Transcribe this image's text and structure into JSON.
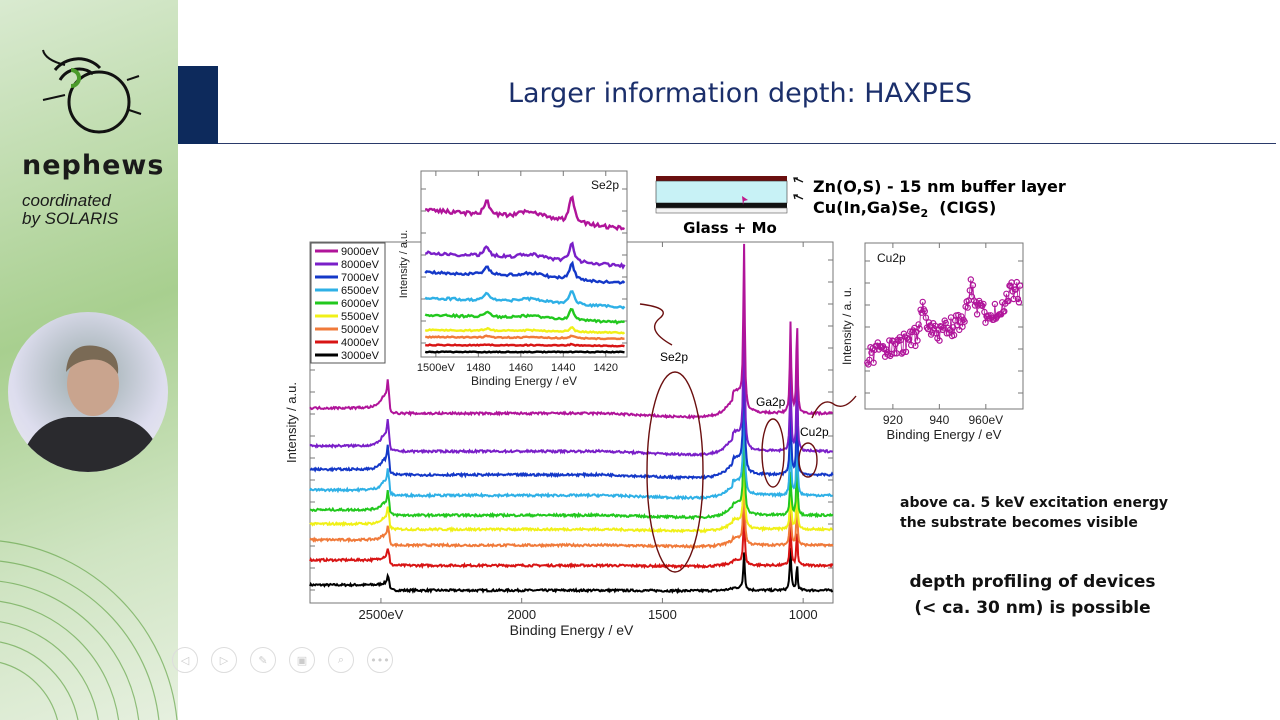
{
  "sidebar": {
    "brand": "nephews",
    "coordinated": "coordinated",
    "by": "by SOLARIS"
  },
  "slide": {
    "title": "Larger information depth: HAXPES",
    "layer_labels": {
      "buffer": "Zn(O,S) - 15 nm buffer layer",
      "cigs_main": "Cu(In,Ga)Se",
      "cigs_sub": "2",
      "cigs_tail": "  (CIGS)",
      "substrate": "Glass + Mo"
    },
    "note_line1": "above ca. 5 keV excitation energy",
    "note_line2": "the substrate becomes visible",
    "conclusion_line1": "depth profiling of devices",
    "conclusion_line2": "(< ca. 30 nm) is possible",
    "annotations": {
      "se2p": "Se2p",
      "ga2p": "Ga2p",
      "cu2p": "Cu2p"
    }
  },
  "controls": [
    {
      "icon": "previous-icon",
      "glyph": "◁"
    },
    {
      "icon": "next-icon",
      "glyph": "▷"
    },
    {
      "icon": "pen-icon",
      "glyph": "✎"
    },
    {
      "icon": "slides-icon",
      "glyph": "▣"
    },
    {
      "icon": "zoom-icon",
      "glyph": "⌕"
    },
    {
      "icon": "more-icon",
      "glyph": "•••"
    }
  ],
  "chart_data": [
    {
      "type": "line",
      "title": "",
      "xlabel": "Binding Energy / eV",
      "ylabel": "Intensity / a.u.",
      "xlim": [
        2752,
        894
      ],
      "ylim": [
        0,
        100
      ],
      "xticks": [
        {
          "v": 2500,
          "label": "2500eV"
        },
        {
          "v": 2000,
          "label": "2000"
        },
        {
          "v": 1500,
          "label": "1500"
        },
        {
          "v": 1000,
          "label": "1000"
        }
      ],
      "legend_position": "top-left",
      "series": [
        {
          "name": "9000eV",
          "color": "#b0149a",
          "baseline": 54
        },
        {
          "name": "8000eV",
          "color": "#7a1fc8",
          "baseline": 43.5
        },
        {
          "name": "7000eV",
          "color": "#1438c8",
          "baseline": 37
        },
        {
          "name": "6500eV",
          "color": "#2eb0e6",
          "baseline": 31.3
        },
        {
          "name": "6000eV",
          "color": "#22c81e",
          "baseline": 25.8
        },
        {
          "name": "5500eV",
          "color": "#f0f018",
          "baseline": 21.9
        },
        {
          "name": "5000eV",
          "color": "#f07a3a",
          "baseline": 17.5
        },
        {
          "name": "4000eV",
          "color": "#d81414",
          "baseline": 11.9
        },
        {
          "name": "3000eV",
          "color": "#000000",
          "baseline": 5
        }
      ],
      "peaks_eV": [
        2475,
        1210,
        1050,
        1025
      ]
    },
    {
      "type": "scatter",
      "title": "Se2p",
      "xlabel": "Binding Energy / eV",
      "ylabel": "Intensity / a.u.",
      "xlim": [
        1507,
        1410
      ],
      "xticks": [
        {
          "v": 1500,
          "label": "1500eV"
        },
        {
          "v": 1480,
          "label": "1480"
        },
        {
          "v": 1460,
          "label": "1460"
        },
        {
          "v": 1440,
          "label": "1440"
        },
        {
          "v": 1420,
          "label": "1420"
        }
      ],
      "peaks_eV": [
        1476,
        1436
      ]
    },
    {
      "type": "scatter",
      "title": "Cu2p",
      "xlabel": "Binding Energy / eV",
      "ylabel": "Intensity / a. u.",
      "xlim": [
        908,
        976
      ],
      "xticks": [
        {
          "v": 920,
          "label": "920"
        },
        {
          "v": 940,
          "label": "940"
        },
        {
          "v": 960,
          "label": "960eV"
        }
      ],
      "peaks_eV": [
        933,
        953
      ]
    }
  ]
}
